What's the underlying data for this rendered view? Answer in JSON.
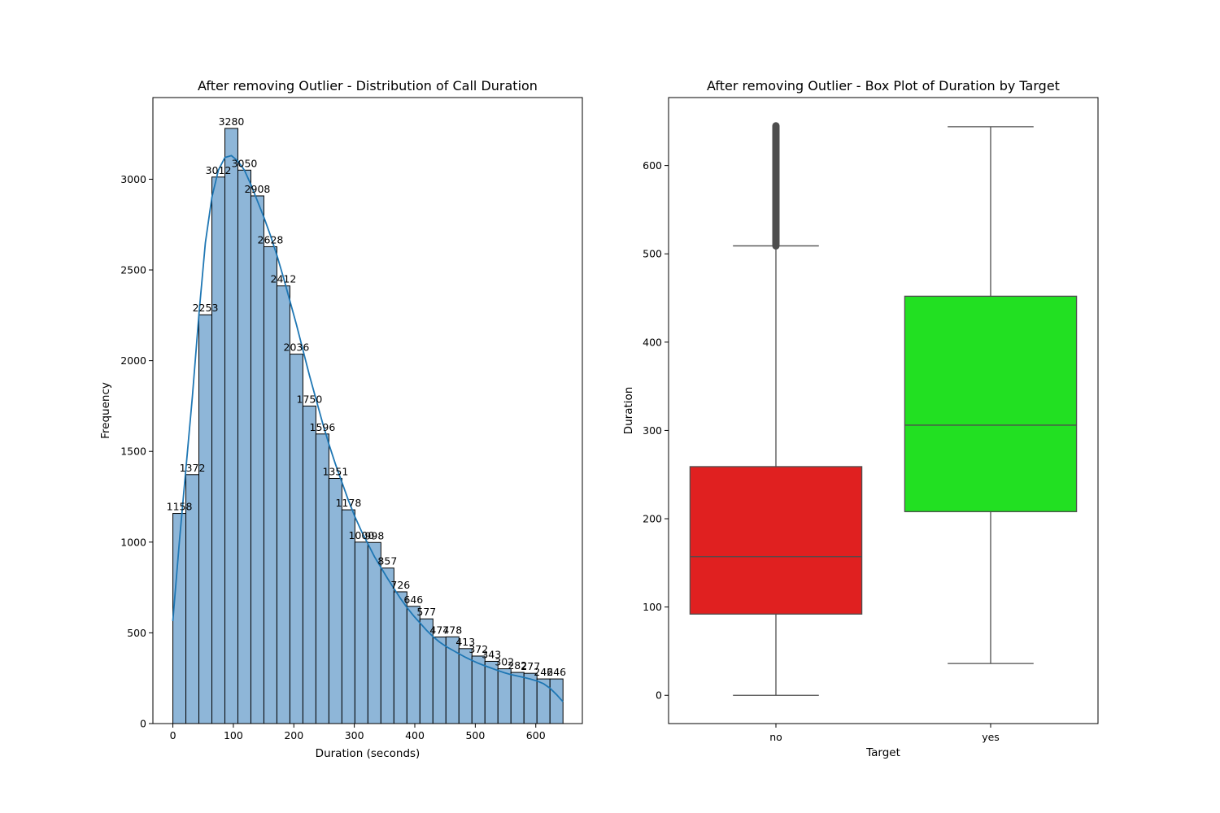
{
  "chart_data": [
    {
      "type": "bar",
      "subtype": "histogram",
      "title": "After removing Outlier - Distribution of Call Duration",
      "xlabel": "Duration (seconds)",
      "ylabel": "Frequency",
      "xlim": [
        -33,
        677
      ],
      "ylim": [
        0,
        3450
      ],
      "xticks": [
        0,
        100,
        200,
        300,
        400,
        500,
        600
      ],
      "yticks": [
        0,
        500,
        1000,
        1500,
        2000,
        2500,
        3000
      ],
      "bin_start": 0,
      "bin_width": 21.5,
      "values": [
        1158,
        1372,
        2253,
        3012,
        3280,
        3050,
        2908,
        2628,
        2412,
        2036,
        1750,
        1596,
        1351,
        1178,
        1000,
        998,
        857,
        726,
        646,
        577,
        477,
        478,
        413,
        372,
        343,
        302,
        282,
        277,
        246,
        246
      ],
      "bar_color": "#8eb6d8",
      "kde_color": "#1f77b4",
      "kde": [
        [
          0,
          565
        ],
        [
          10.75,
          1000
        ],
        [
          21.5,
          1400
        ],
        [
          32.25,
          1800
        ],
        [
          43,
          2250
        ],
        [
          53.75,
          2650
        ],
        [
          64.5,
          2900
        ],
        [
          75.25,
          3050
        ],
        [
          86,
          3120
        ],
        [
          96.75,
          3130
        ],
        [
          107.5,
          3100
        ],
        [
          118.25,
          3050
        ],
        [
          129,
          2970
        ],
        [
          139.75,
          2880
        ],
        [
          150.5,
          2790
        ],
        [
          161.25,
          2690
        ],
        [
          172,
          2580
        ],
        [
          182.75,
          2460
        ],
        [
          193.5,
          2330
        ],
        [
          204.25,
          2200
        ],
        [
          215,
          2060
        ],
        [
          225.75,
          1920
        ],
        [
          236.5,
          1790
        ],
        [
          247.25,
          1660
        ],
        [
          258,
          1540
        ],
        [
          268.75,
          1430
        ],
        [
          279.5,
          1330
        ],
        [
          290.25,
          1230
        ],
        [
          301,
          1140
        ],
        [
          311.75,
          1060
        ],
        [
          322.5,
          990
        ],
        [
          333.25,
          920
        ],
        [
          344,
          860
        ],
        [
          354.75,
          800
        ],
        [
          365.5,
          745
        ],
        [
          376.25,
          690
        ],
        [
          387,
          640
        ],
        [
          397.75,
          595
        ],
        [
          408.5,
          555
        ],
        [
          419.25,
          515
        ],
        [
          430,
          480
        ],
        [
          440.75,
          450
        ],
        [
          451.5,
          425
        ],
        [
          462.25,
          405
        ],
        [
          473,
          385
        ],
        [
          483.75,
          365
        ],
        [
          494.5,
          348
        ],
        [
          505.25,
          332
        ],
        [
          516,
          318
        ],
        [
          526.75,
          305
        ],
        [
          537.5,
          292
        ],
        [
          548.25,
          280
        ],
        [
          559,
          270
        ],
        [
          569.75,
          262
        ],
        [
          580.5,
          254
        ],
        [
          591.25,
          245
        ],
        [
          602,
          235
        ],
        [
          612.75,
          220
        ],
        [
          623.5,
          195
        ],
        [
          634.25,
          160
        ],
        [
          645,
          120
        ]
      ]
    },
    {
      "type": "box",
      "title": "After removing Outlier - Box Plot of Duration by Target",
      "xlabel": "Target",
      "ylabel": "Duration",
      "categories": [
        "no",
        "yes"
      ],
      "ylim": [
        -32,
        677
      ],
      "yticks": [
        0,
        100,
        200,
        300,
        400,
        500,
        600
      ],
      "boxes": [
        {
          "category": "no",
          "whisker_low": 0,
          "q1": 92,
          "median": 157,
          "q3": 259,
          "whisker_high": 509,
          "outlier_range": [
            509,
            645
          ],
          "color": "#e02020"
        },
        {
          "category": "yes",
          "whisker_low": 36,
          "q1": 208,
          "median": 306,
          "q3": 452,
          "whisker_high": 644,
          "color": "#22e022"
        }
      ]
    }
  ]
}
